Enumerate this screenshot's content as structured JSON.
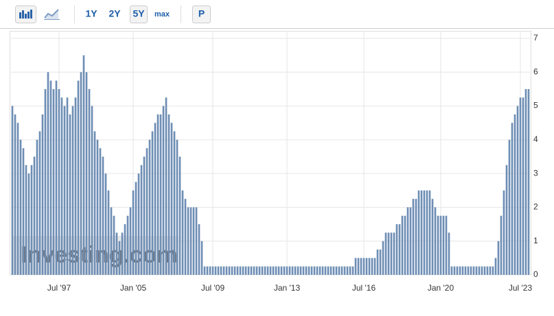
{
  "toolbar": {
    "ranges": [
      "1Y",
      "2Y",
      "5Y",
      "max"
    ],
    "price_button": "P"
  },
  "chart_data": {
    "type": "bar",
    "categories": [
      null,
      null,
      null,
      null,
      null,
      null,
      null,
      null,
      null,
      null,
      null,
      null,
      null,
      null,
      null,
      null,
      null,
      "Jul '97",
      null,
      null,
      null,
      null,
      null,
      null,
      null,
      null,
      null,
      null,
      null,
      null,
      null,
      null,
      null,
      null,
      null,
      null,
      null,
      null,
      null,
      null,
      null,
      null,
      null,
      null,
      "Jan '05",
      null,
      null,
      null,
      null,
      null,
      null,
      null,
      null,
      null,
      null,
      null,
      null,
      null,
      null,
      null,
      null,
      null,
      null,
      null,
      null,
      null,
      null,
      null,
      null,
      null,
      null,
      null,
      null,
      "Jul '09",
      null,
      null,
      null,
      null,
      null,
      null,
      null,
      null,
      null,
      null,
      null,
      null,
      null,
      null,
      null,
      null,
      null,
      null,
      null,
      null,
      null,
      null,
      null,
      null,
      null,
      null,
      "Jan '13",
      null,
      null,
      null,
      null,
      null,
      null,
      null,
      null,
      null,
      null,
      null,
      null,
      null,
      null,
      null,
      null,
      null,
      null,
      null,
      null,
      null,
      null,
      null,
      null,
      null,
      null,
      null,
      "Jul '16",
      null,
      null,
      null,
      null,
      null,
      null,
      null,
      null,
      null,
      null,
      null,
      null,
      null,
      null,
      null,
      null,
      null,
      null,
      null,
      null,
      null,
      null,
      null,
      null,
      null,
      null,
      null,
      "Jan '20",
      null,
      null,
      null,
      null,
      null,
      null,
      null,
      null,
      null,
      null,
      null,
      null,
      null,
      null,
      null,
      null,
      null,
      null,
      null,
      null,
      null,
      null,
      null,
      null,
      null,
      null,
      null,
      null,
      "Jul '23",
      null,
      null,
      null
    ],
    "values": [
      5.0,
      4.75,
      4.5,
      4.0,
      3.75,
      3.25,
      3.0,
      3.25,
      3.5,
      4.0,
      4.25,
      4.75,
      5.5,
      6.0,
      5.75,
      5.5,
      5.75,
      5.5,
      5.25,
      5.0,
      5.25,
      4.75,
      5.0,
      5.25,
      5.75,
      6.0,
      6.5,
      6.0,
      5.5,
      5.0,
      4.25,
      4.0,
      3.75,
      3.5,
      3.0,
      2.5,
      2.0,
      1.75,
      1.25,
      1.0,
      1.25,
      1.5,
      1.75,
      2.0,
      2.5,
      2.75,
      3.0,
      3.25,
      3.5,
      3.75,
      4.0,
      4.25,
      4.5,
      4.75,
      4.75,
      5.0,
      5.25,
      4.75,
      4.5,
      4.25,
      4.0,
      3.5,
      2.5,
      2.25,
      2.0,
      2.0,
      2.0,
      2.0,
      1.5,
      1.0,
      0.25,
      0.25,
      0.25,
      0.25,
      0.25,
      0.25,
      0.25,
      0.25,
      0.25,
      0.25,
      0.25,
      0.25,
      0.25,
      0.25,
      0.25,
      0.25,
      0.25,
      0.25,
      0.25,
      0.25,
      0.25,
      0.25,
      0.25,
      0.25,
      0.25,
      0.25,
      0.25,
      0.25,
      0.25,
      0.25,
      0.25,
      0.25,
      0.25,
      0.25,
      0.25,
      0.25,
      0.25,
      0.25,
      0.25,
      0.25,
      0.25,
      0.25,
      0.25,
      0.25,
      0.25,
      0.25,
      0.25,
      0.25,
      0.25,
      0.25,
      0.25,
      0.25,
      0.25,
      0.25,
      0.25,
      0.5,
      0.5,
      0.5,
      0.5,
      0.5,
      0.5,
      0.5,
      0.5,
      0.75,
      0.75,
      1.0,
      1.25,
      1.25,
      1.25,
      1.25,
      1.5,
      1.5,
      1.75,
      1.75,
      2.0,
      2.0,
      2.25,
      2.25,
      2.5,
      2.5,
      2.5,
      2.5,
      2.5,
      2.25,
      2.0,
      1.75,
      1.75,
      1.75,
      1.75,
      1.25,
      0.25,
      0.25,
      0.25,
      0.25,
      0.25,
      0.25,
      0.25,
      0.25,
      0.25,
      0.25,
      0.25,
      0.25,
      0.25,
      0.25,
      0.25,
      0.25,
      0.5,
      1.0,
      1.75,
      2.5,
      3.25,
      4.0,
      4.5,
      4.75,
      5.0,
      5.25,
      5.25,
      5.5,
      5.5
    ],
    "color": "#6d8db4",
    "ylim": [
      0,
      7
    ],
    "yticks": [
      0,
      1,
      2,
      3,
      4,
      5,
      6,
      7
    ],
    "grid": true,
    "y_axis_side": "right",
    "watermark": "Investing.com"
  }
}
